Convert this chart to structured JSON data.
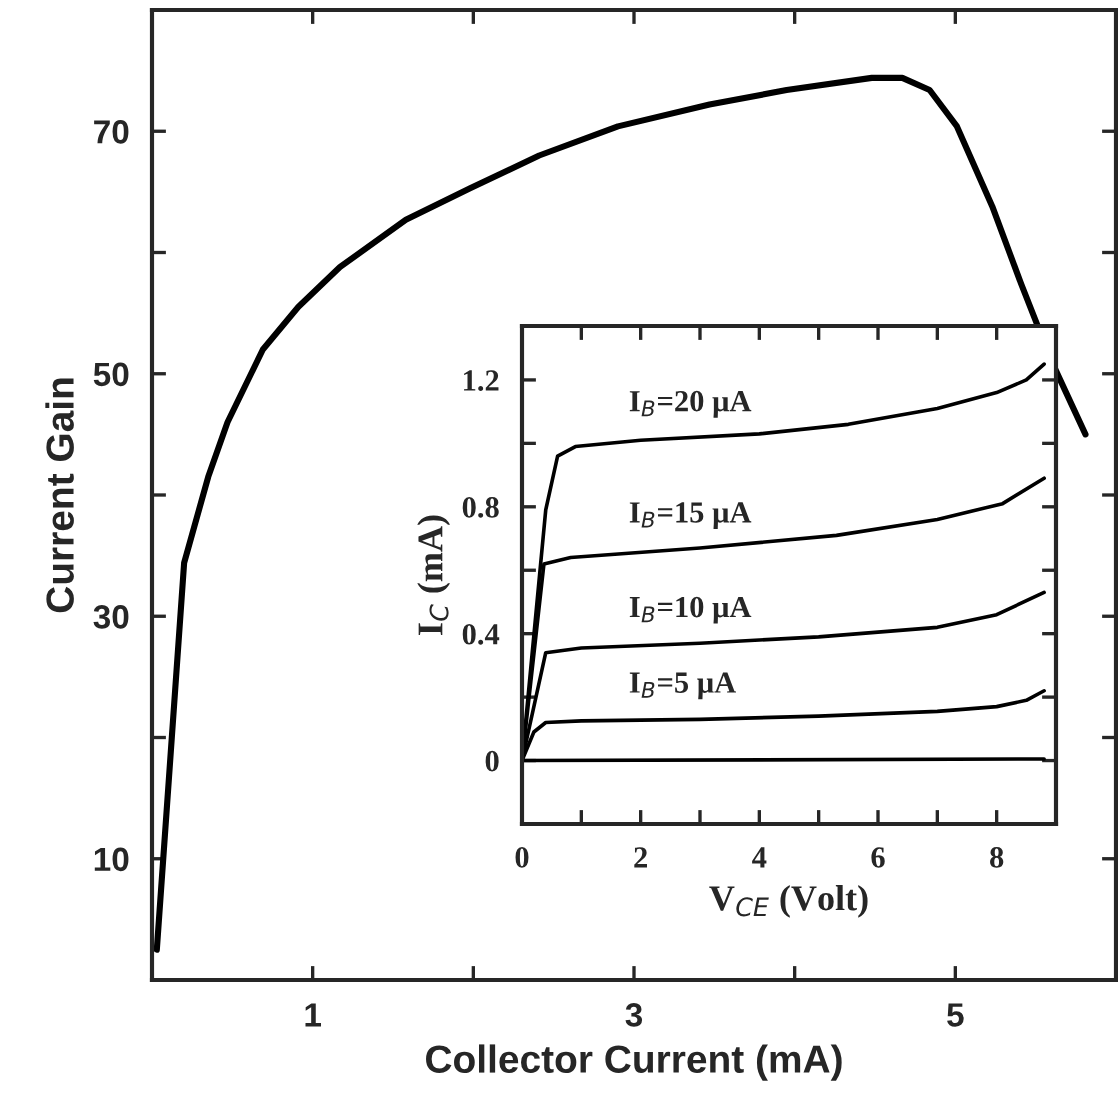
{
  "chart_data": [
    {
      "type": "line",
      "xlabel": "Collector Current (mA)",
      "ylabel": "Current Gain",
      "xlim": [
        0,
        6
      ],
      "ylim": [
        0,
        80
      ],
      "xticks": [
        1,
        {
          "value": 2,
          "label": null
        },
        3,
        {
          "value": 4,
          "label": null
        },
        5
      ],
      "yticks": [
        10,
        {
          "value": 20,
          "label": null
        },
        30,
        {
          "value": 40,
          "label": null
        },
        50,
        {
          "value": 60,
          "label": null
        },
        70
      ],
      "series": [
        {
          "color": "#000000",
          "x": [
            0.03,
            0.2,
            0.35,
            0.47,
            0.69,
            0.91,
            1.17,
            1.58,
            1.98,
            2.41,
            2.9,
            3.47,
            3.95,
            4.48,
            4.67,
            4.84,
            5.01,
            5.23,
            5.41,
            5.6,
            5.81
          ],
          "values": [
            2.5,
            34.4,
            41.5,
            46,
            52,
            55.5,
            58.8,
            62.7,
            65.3,
            68,
            70.4,
            72.2,
            73.4,
            74.4,
            74.4,
            73.4,
            70.4,
            63.8,
            57.4,
            51,
            45
          ]
        }
      ]
    },
    {
      "type": "line",
      "xlabel": "V$_{CE}$ (Volt)",
      "ylabel": "I$_{C}$ (mA)",
      "xlim": [
        0,
        9
      ],
      "ylim": [
        -0.2,
        1.37
      ],
      "xticks": [
        0,
        {
          "value": 1,
          "label": null
        },
        2,
        {
          "value": 3,
          "label": null
        },
        4,
        {
          "value": 5,
          "label": null
        },
        6,
        {
          "value": 7,
          "label": null
        },
        8
      ],
      "yticks": [
        {
          "value": -0.2,
          "label": null
        },
        0,
        {
          "value": 0.2,
          "label": null
        },
        0.4,
        {
          "value": 0.6,
          "label": null
        },
        0.8,
        {
          "value": 1.0,
          "label": null
        },
        1.2
      ],
      "series": [
        {
          "name": "I$_{B}$=20 μA",
          "color": "#000000",
          "x": [
            0,
            0.4,
            0.6,
            0.9,
            2,
            4,
            5.5,
            7,
            8,
            8.5,
            8.8
          ],
          "values": [
            0,
            0.79,
            0.96,
            0.99,
            1.01,
            1.03,
            1.06,
            1.11,
            1.16,
            1.2,
            1.25
          ]
        },
        {
          "name": "I$_{B}$=15 μA",
          "color": "#000000",
          "x": [
            0,
            0.37,
            0.82,
            3,
            5.3,
            7,
            8.1,
            8.8
          ],
          "values": [
            0,
            0.62,
            0.64,
            0.67,
            0.71,
            0.76,
            0.81,
            0.89
          ]
        },
        {
          "name": "I$_{B}$=10 μA",
          "color": "#000000",
          "x": [
            0,
            0.4,
            1,
            3,
            5,
            7,
            8,
            8.8
          ],
          "values": [
            0,
            0.34,
            0.355,
            0.37,
            0.39,
            0.42,
            0.46,
            0.53
          ]
        },
        {
          "name": "I$_{B}$=5 μA",
          "color": "#000000",
          "x": [
            0,
            0.2,
            0.4,
            1,
            3,
            5,
            7,
            8,
            8.5,
            8.8
          ],
          "values": [
            0,
            0.09,
            0.12,
            0.125,
            0.13,
            0.14,
            0.155,
            0.17,
            0.19,
            0.22
          ]
        },
        {
          "color": "#000000",
          "x": [
            0,
            8.8
          ],
          "values": [
            0,
            0.005
          ]
        }
      ]
    }
  ]
}
